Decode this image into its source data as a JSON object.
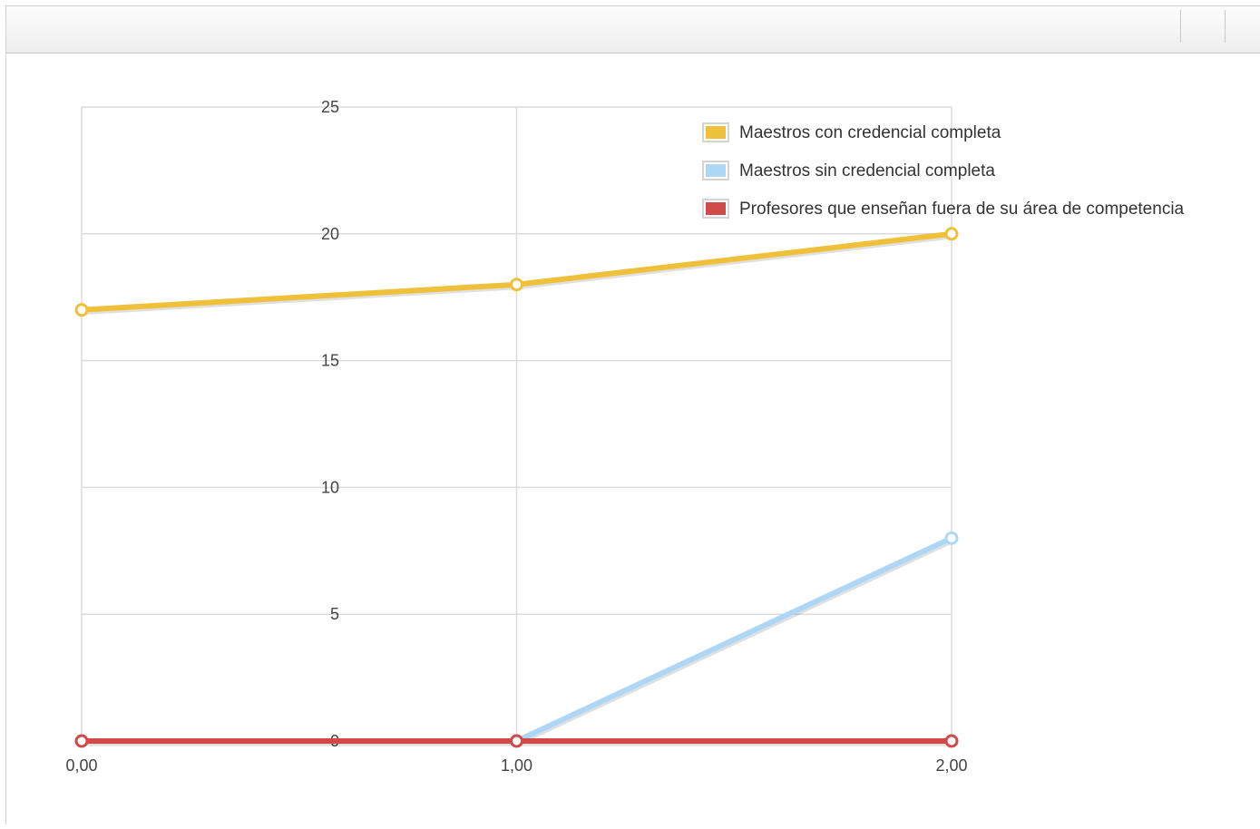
{
  "toolbar": {
    "buttons": [
      "",
      ""
    ]
  },
  "chart_data": {
    "type": "line",
    "title": "",
    "xlabel": "",
    "ylabel": "",
    "x": [
      0,
      1,
      2
    ],
    "x_tick_labels": [
      "0,00",
      "1,00",
      "2,00"
    ],
    "y_ticks": [
      0,
      5,
      10,
      15,
      20,
      25
    ],
    "ylim": [
      0,
      25
    ],
    "xlim": [
      0,
      2
    ],
    "grid": true,
    "legend_position": "top-right",
    "series": [
      {
        "name": "Maestros con credencial completa",
        "values": [
          17,
          18,
          20
        ],
        "color": "#EFC13A"
      },
      {
        "name": "Maestros sin credencial completa",
        "values": [
          null,
          0,
          8
        ],
        "color": "#AED6F5"
      },
      {
        "name": "Profesores que enseñan fuera de su área de competencia",
        "values": [
          0,
          0,
          0
        ],
        "color": "#D04A4A"
      }
    ]
  }
}
